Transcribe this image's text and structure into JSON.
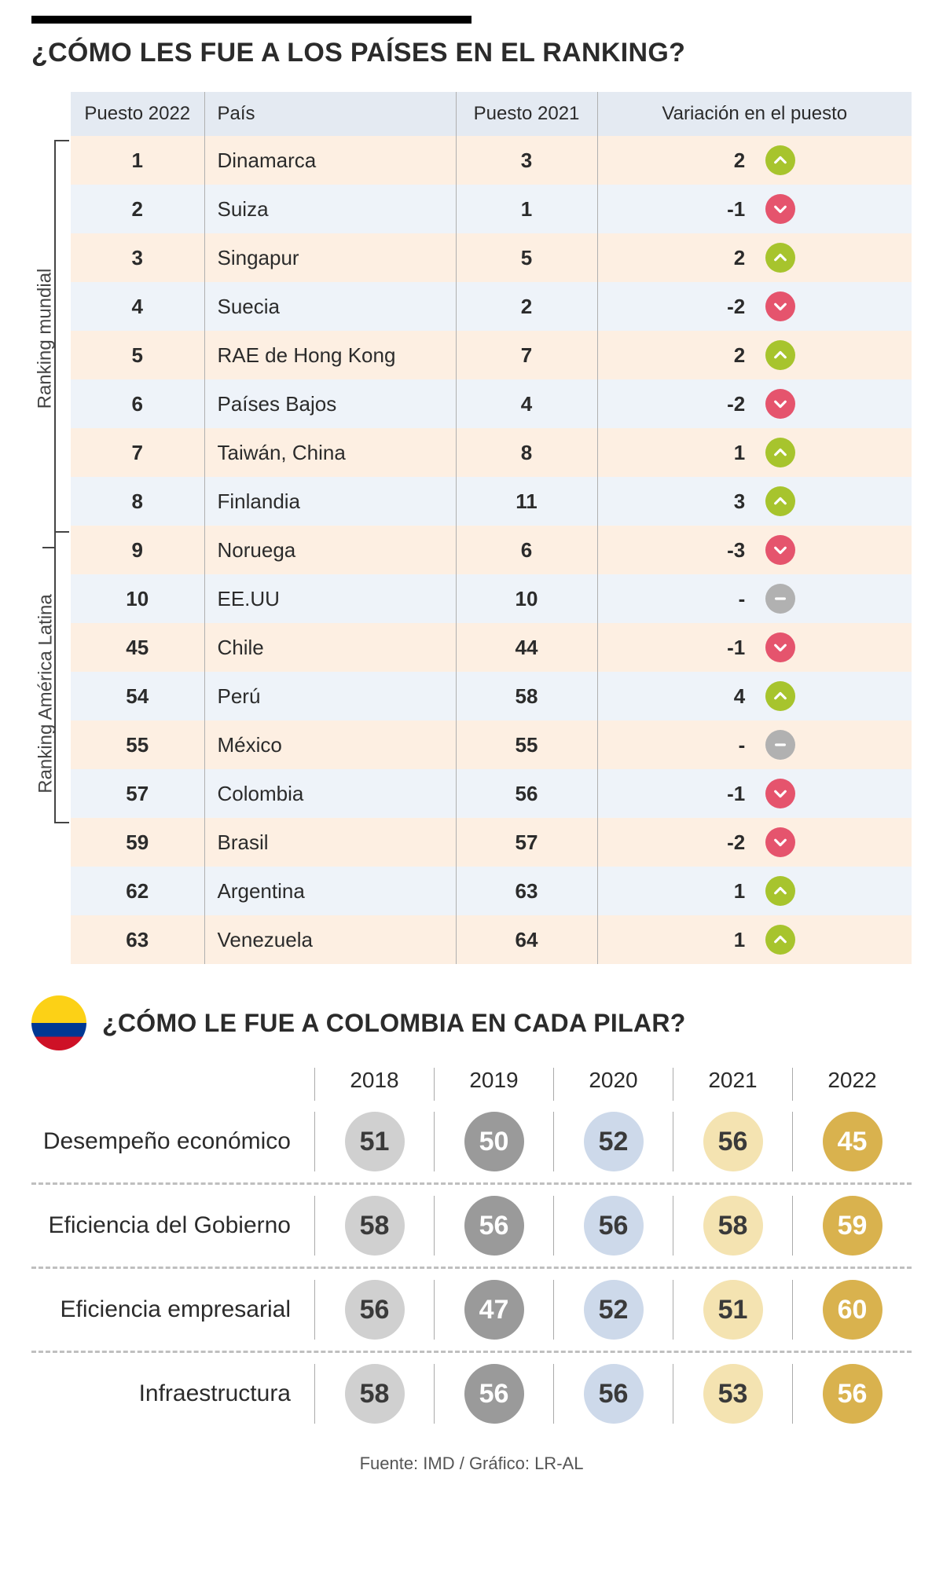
{
  "title": "¿CÓMO LES FUE A LOS PAÍSES EN EL RANKING?",
  "columns": {
    "rank2022": "Puesto 2022",
    "country": "País",
    "rank2021": "Puesto 2021",
    "variation": "Variación en el puesto"
  },
  "bracket_labels": {
    "world": "Ranking mundial",
    "latam": "Ranking América Latina"
  },
  "colors": {
    "up_bg": "#a7c42d",
    "down_bg": "#e5546d",
    "same_bg": "#b1b1b1",
    "arrow_fg": "#ffffff",
    "header_bg": "#e4eaf2",
    "row_odd": "#fdefe2",
    "row_even": "#eef3f9",
    "border": "#b0b0b0"
  },
  "rows": [
    {
      "rank2022": "1",
      "country": "Dinamarca",
      "rank2021": "3",
      "variation": "2",
      "dir": "up"
    },
    {
      "rank2022": "2",
      "country": "Suiza",
      "rank2021": "1",
      "variation": "-1",
      "dir": "down"
    },
    {
      "rank2022": "3",
      "country": "Singapur",
      "rank2021": "5",
      "variation": "2",
      "dir": "up"
    },
    {
      "rank2022": "4",
      "country": "Suecia",
      "rank2021": "2",
      "variation": "-2",
      "dir": "down"
    },
    {
      "rank2022": "5",
      "country": "RAE de Hong Kong",
      "rank2021": "7",
      "variation": "2",
      "dir": "up"
    },
    {
      "rank2022": "6",
      "country": "Países Bajos",
      "rank2021": "4",
      "variation": "-2",
      "dir": "down"
    },
    {
      "rank2022": "7",
      "country": "Taiwán, China",
      "rank2021": "8",
      "variation": "1",
      "dir": "up"
    },
    {
      "rank2022": "8",
      "country": "Finlandia",
      "rank2021": "11",
      "variation": "3",
      "dir": "up"
    },
    {
      "rank2022": "9",
      "country": "Noruega",
      "rank2021": "6",
      "variation": "-3",
      "dir": "down"
    },
    {
      "rank2022": "10",
      "country": "EE.UU",
      "rank2021": "10",
      "variation": "-",
      "dir": "same"
    },
    {
      "rank2022": "45",
      "country": "Chile",
      "rank2021": "44",
      "variation": "-1",
      "dir": "down"
    },
    {
      "rank2022": "54",
      "country": "Perú",
      "rank2021": "58",
      "variation": "4",
      "dir": "up"
    },
    {
      "rank2022": "55",
      "country": "México",
      "rank2021": "55",
      "variation": "-",
      "dir": "same"
    },
    {
      "rank2022": "57",
      "country": "Colombia",
      "rank2021": "56",
      "variation": "-1",
      "dir": "down"
    },
    {
      "rank2022": "59",
      "country": "Brasil",
      "rank2021": "57",
      "variation": "-2",
      "dir": "down"
    },
    {
      "rank2022": "62",
      "country": "Argentina",
      "rank2021": "63",
      "variation": "1",
      "dir": "up"
    },
    {
      "rank2022": "63",
      "country": "Venezuela",
      "rank2021": "64",
      "variation": "1",
      "dir": "up"
    }
  ],
  "section2": {
    "title": "¿CÓMO LE FUE A COLOMBIA EN CADA PILAR?",
    "years": [
      "2018",
      "2019",
      "2020",
      "2021",
      "2022"
    ],
    "year_styles": [
      {
        "bg": "#d0d0d0",
        "fg": "#3a3a3a"
      },
      {
        "bg": "#9a9a9a",
        "fg": "#ffffff"
      },
      {
        "bg": "#cdd9ea",
        "fg": "#3a3a3a"
      },
      {
        "bg": "#f4e3b1",
        "fg": "#3a3a3a"
      },
      {
        "bg": "#d9b24e",
        "fg": "#ffffff"
      }
    ],
    "pillars": [
      {
        "label": "Desempeño económico",
        "values": [
          "51",
          "50",
          "52",
          "56",
          "45"
        ]
      },
      {
        "label": "Eficiencia del Gobierno",
        "values": [
          "58",
          "56",
          "56",
          "58",
          "59"
        ]
      },
      {
        "label": "Eficiencia empresarial",
        "values": [
          "56",
          "47",
          "52",
          "51",
          "60"
        ]
      },
      {
        "label": "Infraestructura",
        "values": [
          "58",
          "56",
          "56",
          "53",
          "56"
        ]
      }
    ],
    "flag": {
      "top": "#fcd116",
      "mid": "#003893",
      "bot": "#ce1126"
    }
  },
  "source": "Fuente: IMD / Gráfico: LR-AL"
}
